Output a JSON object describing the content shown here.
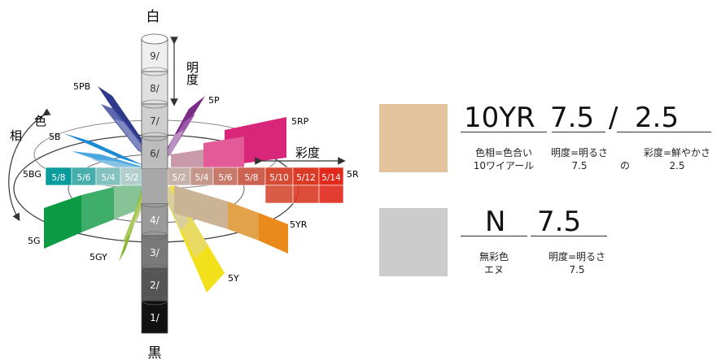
{
  "diagram": {
    "top_label": "白",
    "bottom_label": "黒",
    "lightness_axis_label": "明度",
    "chroma_axis_label": "彩度",
    "hue_axis_chars": [
      "色",
      "相"
    ],
    "value_steps": [
      "9/",
      "8/",
      "7/",
      "6/",
      "4/",
      "3/",
      "2/",
      "1/"
    ],
    "hue_labels": [
      "5PB",
      "5P",
      "5RP",
      "5R",
      "5YR",
      "5Y",
      "5GY",
      "5G",
      "5BG",
      "5B"
    ],
    "right_row": [
      "5/2",
      "5/4",
      "5/6",
      "5/8",
      "5/10",
      "5/12",
      "5/14"
    ],
    "left_row": [
      "5/8",
      "5/6",
      "5/4",
      "5/2"
    ]
  },
  "example_chromatic": {
    "swatch_color": "#e3c39d",
    "hue": "10YR",
    "value": "7.5",
    "slash": "/",
    "chroma": "2.5",
    "hue_caption": [
      "色相=色合い",
      "10ワイアール"
    ],
    "value_caption": [
      "明度=明るさ",
      "7.5"
    ],
    "connector": "の",
    "chroma_caption": [
      "彩度=鮮やかさ",
      "2.5"
    ]
  },
  "example_neutral": {
    "swatch_color": "#cbcccb",
    "hue": "N",
    "value": "7.5",
    "hue_caption": [
      "無彩色",
      "エヌ"
    ],
    "value_caption": [
      "明度=明るさ",
      "7.5"
    ]
  }
}
